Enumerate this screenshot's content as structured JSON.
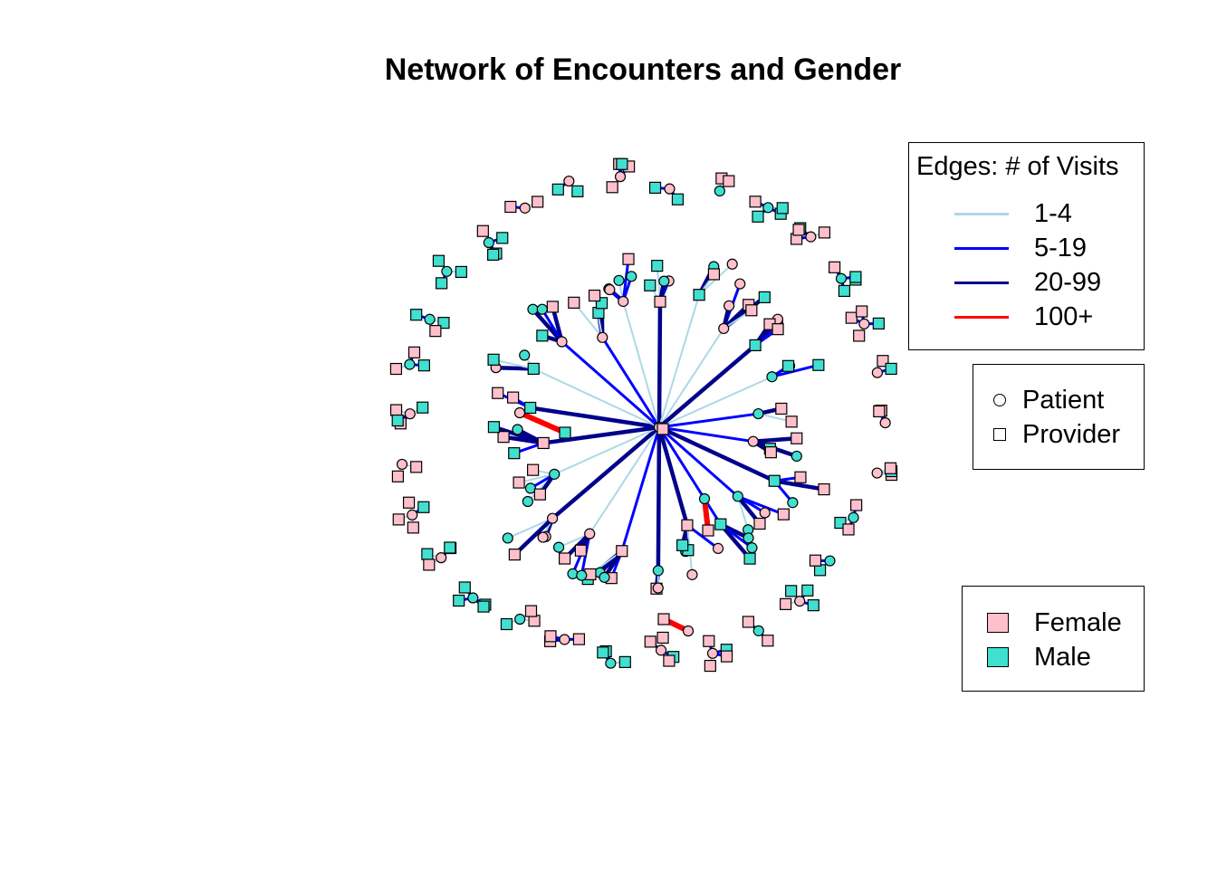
{
  "title": "Network of Encounters and Gender",
  "legends": {
    "edges": {
      "title": "Edges: # of Visits",
      "items": [
        {
          "label": "1-4",
          "color": "#add8e6"
        },
        {
          "label": "5-19",
          "color": "#0000ff"
        },
        {
          "label": "20-99",
          "color": "#00008b"
        },
        {
          "label": "100+",
          "color": "#ff0000"
        }
      ]
    },
    "node_type": {
      "items": [
        {
          "label": "Patient",
          "shape": "circle"
        },
        {
          "label": "Provider",
          "shape": "square"
        }
      ]
    },
    "gender": {
      "items": [
        {
          "label": "Female",
          "color": "#ffc0cb"
        },
        {
          "label": "Male",
          "color": "#40e0d0"
        }
      ]
    }
  }
}
